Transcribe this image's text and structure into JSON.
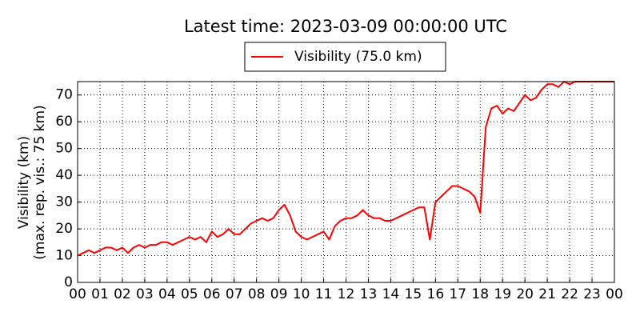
{
  "chart_data": {
    "type": "line",
    "title": "Latest time: 2023-03-09 00:00:00 UTC",
    "ylabel": [
      "Visibility (km)",
      "(max. rep. vis.: 75 km)"
    ],
    "series": [
      {
        "name": "Visibility (75.0 km)",
        "color": "#ff0000",
        "x": [
          0,
          0.25,
          0.5,
          0.75,
          1,
          1.25,
          1.5,
          1.75,
          2,
          2.25,
          2.5,
          2.75,
          3,
          3.25,
          3.5,
          3.75,
          4,
          4.25,
          4.5,
          4.75,
          5,
          5.25,
          5.5,
          5.75,
          6,
          6.25,
          6.5,
          6.75,
          7,
          7.25,
          7.5,
          7.75,
          8,
          8.25,
          8.5,
          8.75,
          9,
          9.25,
          9.5,
          9.75,
          10,
          10.25,
          10.5,
          10.75,
          11,
          11.25,
          11.5,
          11.75,
          12,
          12.25,
          12.5,
          12.75,
          13,
          13.25,
          13.5,
          13.75,
          14,
          14.25,
          14.5,
          14.75,
          15,
          15.25,
          15.5,
          15.75,
          16,
          16.25,
          16.5,
          16.75,
          17,
          17.25,
          17.5,
          17.75,
          18,
          18.25,
          18.5,
          18.75,
          19,
          19.25,
          19.5,
          19.75,
          20,
          20.25,
          20.5,
          20.75,
          21,
          21.25,
          21.5,
          21.75,
          22,
          22.25,
          22.5,
          22.75,
          23,
          23.25,
          23.5,
          23.75,
          24
        ],
        "values": [
          10,
          11,
          12,
          11,
          12,
          13,
          13,
          12,
          13,
          11,
          13,
          14,
          13,
          14,
          14,
          15,
          15,
          14,
          15,
          16,
          17,
          16,
          17,
          15,
          19,
          17,
          18,
          20,
          18,
          18,
          20,
          22,
          23,
          24,
          23,
          24,
          27,
          29,
          25,
          19,
          17,
          16,
          17,
          18,
          19,
          16,
          21,
          23,
          24,
          24,
          25,
          27,
          25,
          24,
          24,
          23,
          23,
          24,
          25,
          26,
          27,
          28,
          28,
          16,
          30,
          32,
          34,
          36,
          36,
          35,
          34,
          32,
          26,
          58,
          65,
          66,
          63,
          65,
          64,
          67,
          70,
          68,
          69,
          72,
          74,
          74,
          73,
          75,
          74,
          75,
          75,
          75,
          75,
          75,
          75,
          75,
          75
        ]
      }
    ],
    "xlim": [
      0,
      24
    ],
    "xticks": [
      {
        "value": 0,
        "label": "00"
      },
      {
        "value": 1,
        "label": "01"
      },
      {
        "value": 2,
        "label": "02"
      },
      {
        "value": 3,
        "label": "03"
      },
      {
        "value": 4,
        "label": "04"
      },
      {
        "value": 5,
        "label": "05"
      },
      {
        "value": 6,
        "label": "06"
      },
      {
        "value": 7,
        "label": "07"
      },
      {
        "value": 8,
        "label": "08"
      },
      {
        "value": 9,
        "label": "09"
      },
      {
        "value": 10,
        "label": "10"
      },
      {
        "value": 11,
        "label": "11"
      },
      {
        "value": 12,
        "label": "12"
      },
      {
        "value": 13,
        "label": "13"
      },
      {
        "value": 14,
        "label": "14"
      },
      {
        "value": 15,
        "label": "15"
      },
      {
        "value": 16,
        "label": "16"
      },
      {
        "value": 17,
        "label": "17"
      },
      {
        "value": 18,
        "label": "18"
      },
      {
        "value": 19,
        "label": "19"
      },
      {
        "value": 20,
        "label": "20"
      },
      {
        "value": 21,
        "label": "21"
      },
      {
        "value": 22,
        "label": "22"
      },
      {
        "value": 23,
        "label": "23"
      },
      {
        "value": 24,
        "label": "00"
      }
    ],
    "ylim": [
      0,
      75
    ],
    "yticks": [
      0,
      10,
      20,
      30,
      40,
      50,
      60,
      70
    ],
    "grid": true,
    "legend": "top"
  }
}
